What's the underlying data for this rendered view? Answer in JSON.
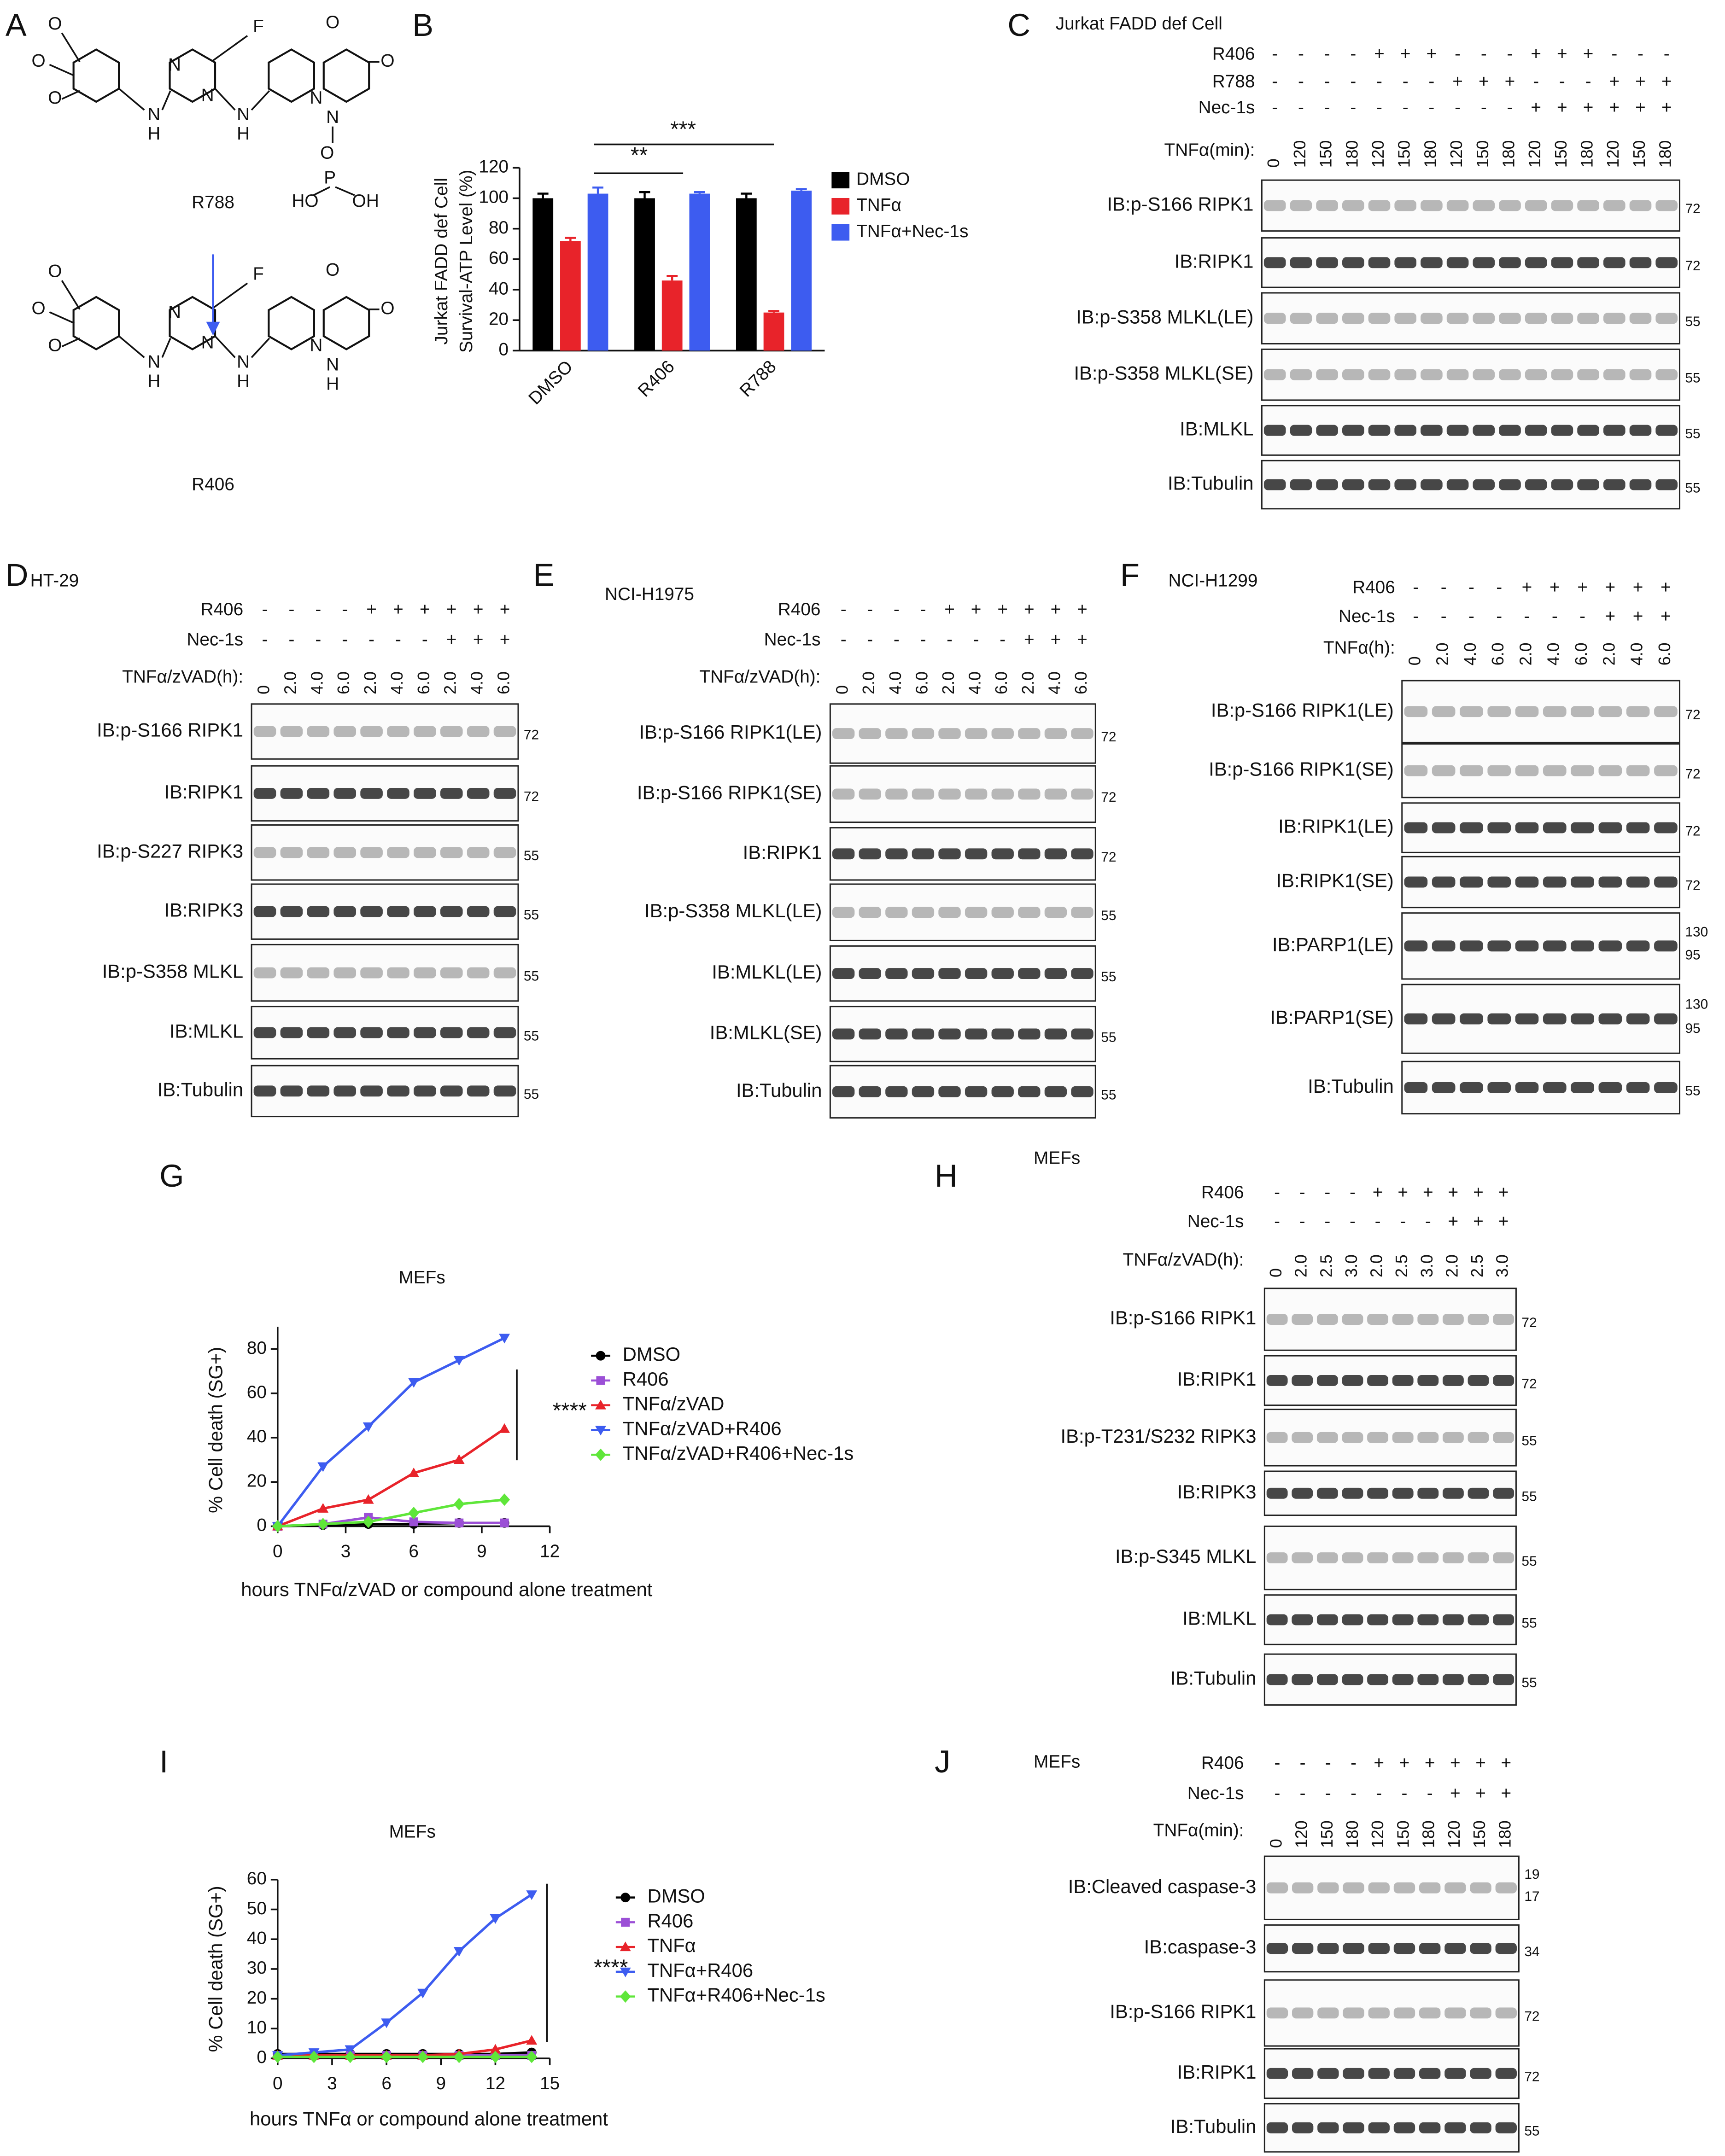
{
  "panel_letters": [
    "A",
    "B",
    "C",
    "D",
    "E",
    "F",
    "G",
    "H",
    "I",
    "J"
  ],
  "structures": {
    "compounds": [
      {
        "name": "R788",
        "atoms": [
          "O",
          "O",
          "O",
          "N",
          "H",
          "N",
          "N",
          "F",
          "N",
          "H",
          "N",
          "O",
          "N",
          "O",
          "O",
          "P",
          "HO",
          "OH"
        ]
      },
      {
        "name": "R406",
        "atoms": [
          "O",
          "O",
          "O",
          "N",
          "H",
          "N",
          "N",
          "F",
          "N",
          "H",
          "N",
          "O",
          "N",
          "H",
          "O"
        ]
      }
    ]
  },
  "chart_data": [
    {
      "type": "bar",
      "y_label": [
        "Jurkat FADD def Cell",
        "Survival-ATP Level (%)"
      ],
      "categories": [
        "DMSO",
        "R406",
        "R788"
      ],
      "series": [
        {
          "name": "DMSO",
          "color": "#000000",
          "values": [
            100,
            100,
            100
          ],
          "errors": [
            3,
            4,
            3
          ]
        },
        {
          "name": "TNFα",
          "color": "#e8232a",
          "values": [
            72,
            46,
            25
          ],
          "errors": [
            2,
            3,
            1
          ]
        },
        {
          "name": "TNFα+Nec-1s",
          "color": "#3d5cf0",
          "values": [
            103,
            103,
            105
          ],
          "errors": [
            4,
            1,
            1
          ]
        }
      ],
      "ylim": [
        0,
        120
      ],
      "yticks": [
        0,
        20,
        40,
        60,
        80,
        100,
        120
      ],
      "annotations": [
        "**",
        "***"
      ]
    },
    {
      "type": "line",
      "title": "MEFs",
      "x_label": "hours TNFα/zVAD or compound alone treatment",
      "y_label": "% Cell death (SG+)",
      "x": [
        0,
        2,
        4,
        6,
        8,
        10
      ],
      "series": [
        {
          "name": "DMSO",
          "color": "#000000",
          "marker": "circle",
          "values": [
            0,
            0.5,
            1,
            1,
            1.5,
            1.5
          ]
        },
        {
          "name": "R406",
          "color": "#9b4fd6",
          "marker": "square",
          "values": [
            0,
            1,
            4,
            2,
            1.5,
            1.5
          ]
        },
        {
          "name": "TNFα/zVAD",
          "color": "#e8232a",
          "marker": "triangle-up",
          "values": [
            0,
            8,
            12,
            24,
            30,
            44
          ]
        },
        {
          "name": "TNFα/zVAD+R406",
          "color": "#3d5cf0",
          "marker": "triangle-down",
          "values": [
            0,
            27,
            45,
            65,
            75,
            85
          ]
        },
        {
          "name": "TNFα/zVAD+R406+Nec-1s",
          "color": "#5fe63a",
          "marker": "diamond",
          "values": [
            0,
            1,
            2,
            6,
            10,
            12
          ]
        }
      ],
      "xlim": [
        0,
        12
      ],
      "xticks": [
        0,
        3,
        6,
        9,
        12
      ],
      "ylim": [
        0,
        90
      ],
      "yticks": [
        0,
        20,
        40,
        60,
        80
      ],
      "annotations": [
        "****"
      ]
    },
    {
      "type": "line",
      "title": "MEFs",
      "x_label": "hours TNFα or compound alone treatment",
      "y_label": "% Cell death (SG+)",
      "x": [
        0,
        2,
        4,
        6,
        8,
        10,
        12,
        14
      ],
      "series": [
        {
          "name": "DMSO",
          "color": "#000000",
          "marker": "circle",
          "values": [
            1.5,
            1.5,
            1.5,
            1.5,
            1.5,
            1.5,
            1.5,
            2
          ]
        },
        {
          "name": "R406",
          "color": "#9b4fd6",
          "marker": "square",
          "values": [
            1,
            1,
            1,
            1,
            1,
            1,
            1,
            1
          ]
        },
        {
          "name": "TNFα",
          "color": "#e8232a",
          "marker": "triangle-up",
          "values": [
            1,
            1,
            1,
            1,
            1,
            1.5,
            3,
            6
          ]
        },
        {
          "name": "TNFα+R406",
          "color": "#3d5cf0",
          "marker": "triangle-down",
          "values": [
            1,
            2,
            3,
            12,
            22,
            36,
            47,
            55
          ]
        },
        {
          "name": "TNFα+R406+Nec-1s",
          "color": "#5fe63a",
          "marker": "diamond",
          "values": [
            0.5,
            0.5,
            0.5,
            0.5,
            0.5,
            0.5,
            0.5,
            0.5
          ]
        }
      ],
      "xlim": [
        0,
        15
      ],
      "xticks": [
        0,
        3,
        6,
        9,
        12,
        15
      ],
      "ylim": [
        0,
        60
      ],
      "yticks": [
        0,
        10,
        20,
        30,
        40,
        50,
        60
      ],
      "annotations": [
        "****"
      ]
    }
  ],
  "blots": [
    {
      "cell_line": "Jurkat FADD def Cell",
      "treatments": [
        {
          "name": "R406",
          "signs": [
            "-",
            "-",
            "-",
            "-",
            "+",
            "+",
            "+",
            "-",
            "-",
            "-",
            "+",
            "+",
            "+",
            "-",
            "-",
            "-"
          ]
        },
        {
          "name": "R788",
          "signs": [
            "-",
            "-",
            "-",
            "-",
            "-",
            "-",
            "-",
            "+",
            "+",
            "+",
            "-",
            "-",
            "-",
            "+",
            "+",
            "+"
          ]
        },
        {
          "name": "Nec-1s",
          "signs": [
            "-",
            "-",
            "-",
            "-",
            "-",
            "-",
            "-",
            "-",
            "-",
            "-",
            "+",
            "+",
            "+",
            "+",
            "+",
            "+"
          ]
        }
      ],
      "time_label": "TNFα(min):",
      "times": [
        "0",
        "120",
        "150",
        "180",
        "120",
        "150",
        "180",
        "120",
        "150",
        "180",
        "120",
        "150",
        "180",
        "120",
        "150",
        "180"
      ],
      "rows": [
        {
          "label": "IB:p-S166 RIPK1",
          "mw": [
            72
          ]
        },
        {
          "label": "IB:RIPK1",
          "mw": [
            72
          ]
        },
        {
          "label": "IB:p-S358 MLKL(LE)",
          "mw": [
            55
          ]
        },
        {
          "label": "IB:p-S358 MLKL(SE)",
          "mw": [
            55
          ]
        },
        {
          "label": "IB:MLKL",
          "mw": [
            55
          ]
        },
        {
          "label": "IB:Tubulin",
          "mw": [
            55
          ]
        }
      ]
    },
    {
      "cell_line": "HT-29",
      "treatments": [
        {
          "name": "R406",
          "signs": [
            "-",
            "-",
            "-",
            "-",
            "+",
            "+",
            "+",
            "+",
            "+",
            "+"
          ]
        },
        {
          "name": "Nec-1s",
          "signs": [
            "-",
            "-",
            "-",
            "-",
            "-",
            "-",
            "-",
            "+",
            "+",
            "+"
          ]
        }
      ],
      "time_label": "TNFα/zVAD(h):",
      "times": [
        "0",
        "2.0",
        "4.0",
        "6.0",
        "2.0",
        "4.0",
        "6.0",
        "2.0",
        "4.0",
        "6.0"
      ],
      "rows": [
        {
          "label": "IB:p-S166 RIPK1",
          "mw": [
            72
          ]
        },
        {
          "label": "IB:RIPK1",
          "mw": [
            72
          ]
        },
        {
          "label": "IB:p-S227 RIPK3",
          "mw": [
            55
          ]
        },
        {
          "label": "IB:RIPK3",
          "mw": [
            55
          ]
        },
        {
          "label": "IB:p-S358 MLKL",
          "mw": [
            55
          ]
        },
        {
          "label": "IB:MLKL",
          "mw": [
            55
          ]
        },
        {
          "label": "IB:Tubulin",
          "mw": [
            55
          ]
        }
      ]
    },
    {
      "cell_line": "NCI-H1975",
      "treatments": [
        {
          "name": "R406",
          "signs": [
            "-",
            "-",
            "-",
            "-",
            "+",
            "+",
            "+",
            "+",
            "+",
            "+"
          ]
        },
        {
          "name": "Nec-1s",
          "signs": [
            "-",
            "-",
            "-",
            "-",
            "-",
            "-",
            "-",
            "+",
            "+",
            "+"
          ]
        }
      ],
      "time_label": "TNFα/zVAD(h):",
      "times": [
        "0",
        "2.0",
        "4.0",
        "6.0",
        "2.0",
        "4.0",
        "6.0",
        "2.0",
        "4.0",
        "6.0"
      ],
      "rows": [
        {
          "label": "IB:p-S166 RIPK1(LE)",
          "mw": [
            72
          ]
        },
        {
          "label": "IB:p-S166 RIPK1(SE)",
          "mw": [
            72
          ]
        },
        {
          "label": "IB:RIPK1",
          "mw": [
            72
          ]
        },
        {
          "label": "IB:p-S358 MLKL(LE)",
          "mw": [
            55
          ]
        },
        {
          "label": "IB:MLKL(LE)",
          "mw": [
            55
          ]
        },
        {
          "label": "IB:MLKL(SE)",
          "mw": [
            55
          ]
        },
        {
          "label": "IB:Tubulin",
          "mw": [
            55
          ]
        }
      ]
    },
    {
      "cell_line": "NCI-H1299",
      "treatments": [
        {
          "name": "R406",
          "signs": [
            "-",
            "-",
            "-",
            "-",
            "+",
            "+",
            "+",
            "+",
            "+",
            "+"
          ]
        },
        {
          "name": "Nec-1s",
          "signs": [
            "-",
            "-",
            "-",
            "-",
            "-",
            "-",
            "-",
            "+",
            "+",
            "+"
          ]
        }
      ],
      "time_label": "TNFα(h):",
      "times": [
        "0",
        "2.0",
        "4.0",
        "6.0",
        "2.0",
        "4.0",
        "6.0",
        "2.0",
        "4.0",
        "6.0"
      ],
      "rows": [
        {
          "label": "IB:p-S166 RIPK1(LE)",
          "mw": [
            72
          ]
        },
        {
          "label": "IB:p-S166 RIPK1(SE)",
          "mw": [
            72
          ]
        },
        {
          "label": "IB:RIPK1(LE)",
          "mw": [
            72
          ]
        },
        {
          "label": "IB:RIPK1(SE)",
          "mw": [
            72
          ]
        },
        {
          "label": "IB:PARP1(LE)",
          "mw": [
            130,
            95
          ]
        },
        {
          "label": "IB:PARP1(SE)",
          "mw": [
            130,
            95
          ]
        },
        {
          "label": "IB:Tubulin",
          "mw": [
            55
          ]
        }
      ]
    },
    {
      "cell_line": "MEFs",
      "treatments": [
        {
          "name": "R406",
          "signs": [
            "-",
            "-",
            "-",
            "-",
            "+",
            "+",
            "+",
            "+",
            "+",
            "+"
          ]
        },
        {
          "name": "Nec-1s",
          "signs": [
            "-",
            "-",
            "-",
            "-",
            "-",
            "-",
            "-",
            "+",
            "+",
            "+"
          ]
        }
      ],
      "time_label": "TNFα/zVAD(h):",
      "times": [
        "0",
        "2.0",
        "2.5",
        "3.0",
        "2.0",
        "2.5",
        "3.0",
        "2.0",
        "2.5",
        "3.0"
      ],
      "rows": [
        {
          "label": "IB:p-S166 RIPK1",
          "mw": [
            72
          ]
        },
        {
          "label": "IB:RIPK1",
          "mw": [
            72
          ]
        },
        {
          "label": "IB:p-T231/S232 RIPK3",
          "mw": [
            55
          ]
        },
        {
          "label": "IB:RIPK3",
          "mw": [
            55
          ]
        },
        {
          "label": "IB:p-S345 MLKL",
          "mw": [
            55
          ]
        },
        {
          "label": "IB:MLKL",
          "mw": [
            55
          ]
        },
        {
          "label": "IB:Tubulin",
          "mw": [
            55
          ]
        }
      ]
    },
    {
      "cell_line": "MEFs",
      "treatments": [
        {
          "name": "R406",
          "signs": [
            "-",
            "-",
            "-",
            "-",
            "+",
            "+",
            "+",
            "+",
            "+",
            "+"
          ]
        },
        {
          "name": "Nec-1s",
          "signs": [
            "-",
            "-",
            "-",
            "-",
            "-",
            "-",
            "-",
            "+",
            "+",
            "+"
          ]
        }
      ],
      "time_label": "TNFα(min):",
      "times": [
        "0",
        "120",
        "150",
        "180",
        "120",
        "150",
        "180",
        "120",
        "150",
        "180"
      ],
      "rows": [
        {
          "label": "IB:Cleaved caspase-3",
          "mw": [
            19,
            17
          ]
        },
        {
          "label": "IB:caspase-3",
          "mw": [
            34
          ]
        },
        {
          "label": "IB:p-S166 RIPK1",
          "mw": [
            72
          ]
        },
        {
          "label": "IB:RIPK1",
          "mw": [
            72
          ]
        },
        {
          "label": "IB:Tubulin",
          "mw": [
            55
          ]
        }
      ]
    }
  ]
}
